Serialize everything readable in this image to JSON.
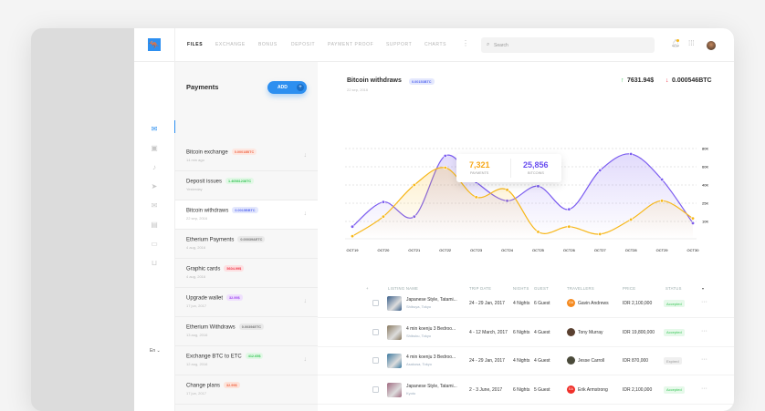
{
  "nav": {
    "items": [
      "FILES",
      "EXCHANGE",
      "BONUS",
      "DEPOSIT",
      "PAYMENT PROOF",
      "SUPPORT",
      "CHARTS"
    ],
    "active": "FILES",
    "search_placeholder": "Search",
    "icons": [
      "logo-kangaroo",
      "more-vertical",
      "search",
      "bell",
      "apps-grid",
      "avatar"
    ]
  },
  "rail": {
    "icons": [
      "mail",
      "calendar",
      "bell",
      "send",
      "inbox",
      "document",
      "chat",
      "tray"
    ],
    "language": "En ⌄"
  },
  "payments": {
    "title": "Payments",
    "add_label": "ADD",
    "items": [
      {
        "title": "Bitcoin exchange",
        "badge": "0.00018BTC",
        "badge_color": "#f06a4a",
        "badge_bg": "#fde8e2",
        "date": "14 min ago",
        "arrow": true
      },
      {
        "title": "Deposit issues",
        "badge": "1.40581238TC",
        "badge_color": "#3cc65a",
        "badge_bg": "#e2f8e6",
        "date": "Yesterday",
        "arrow": false
      },
      {
        "title": "Bitcoin withdraws",
        "badge": "0.0015BBTC",
        "badge_color": "#5a6cf0",
        "badge_bg": "#e4e8fd",
        "date": "22 sep, 2016",
        "arrow": true,
        "selected": true
      },
      {
        "title": "Etherium Payments",
        "badge": "0.00039&ETC",
        "badge_color": "#777",
        "badge_bg": "#e9e9e9",
        "date": "4 aug, 2016",
        "arrow": false
      },
      {
        "title": "Graphic cards",
        "badge": "5604.99$",
        "badge_color": "#f0384a",
        "badge_bg": "#fde0e2",
        "date": "4 aug, 2016",
        "arrow": false
      },
      {
        "title": "Upgrade wallet",
        "badge": "32.99$",
        "badge_color": "#a04af0",
        "badge_bg": "#efe0fd",
        "date": "17 jun, 2017",
        "arrow": true
      },
      {
        "title": "Etherium Withdraws",
        "badge": "0.00394ETC",
        "badge_color": "#777",
        "badge_bg": "#e9e9e9",
        "date": "13 aug, 2016",
        "arrow": false
      },
      {
        "title": "Exchange BTC to ETC",
        "badge": "412.65$",
        "badge_color": "#3cc65a",
        "badge_bg": "#e2f8e6",
        "date": "12 aug, 2016",
        "arrow": true
      },
      {
        "title": "Change plans",
        "badge": "32.99$",
        "badge_color": "#f06a4a",
        "badge_bg": "#fde3da",
        "date": "17 jun, 2017",
        "arrow": false
      }
    ]
  },
  "header": {
    "title": "Bitcoin withdraws",
    "badge": "0.00153BTC",
    "date": "22 sep, 2016",
    "up_value": "7631.94$",
    "down_value": "0.000546BTC",
    "up_color": "#3cc65a",
    "down_color": "#f0384a"
  },
  "tooltip": {
    "payments_value": "7,321",
    "payments_label": "PAYMENTS",
    "bitcoins_value": "25,856",
    "bitcoins_label": "BITCOINS"
  },
  "chart_data": {
    "type": "area",
    "x": [
      "OCT19",
      "OCT20",
      "OCT21",
      "OCT22",
      "OCT23",
      "OCT24",
      "OCT25",
      "OCT26",
      "OCT27",
      "OCT28",
      "OCT29",
      "OCT30"
    ],
    "y_ticks": [
      "10K",
      "25K",
      "40K",
      "60K",
      "80K"
    ],
    "y_tick_values": [
      10,
      25,
      40,
      60,
      80
    ],
    "grid": true,
    "series": [
      {
        "color": "#7b5cf0",
        "values": [
          7,
          26,
          14,
          72,
          43,
          27,
          39,
          20,
          56,
          74,
          46,
          9
        ]
      },
      {
        "color": "#f7b718",
        "values": [
          1.5,
          14,
          40,
          59,
          30,
          36,
          4,
          7,
          2.7,
          11.6,
          27,
          12.5
        ]
      }
    ]
  },
  "table": {
    "headers": [
      "+",
      "LISTING NAME",
      "TRIP DATE",
      "NIGHTS",
      "GUEST",
      "TRAVELLERS",
      "PRICE",
      "STATUS",
      "▾"
    ],
    "rows": [
      {
        "name": "Japanese Style, Tatami...",
        "location": "Shibuya, Tokyo",
        "date": "24 - 29 Jan, 2017",
        "nights": "4 Nights",
        "guest": "6 Guest",
        "traveller": "Gavin Andrews",
        "initials": "GA",
        "avatar_color": "#f58a1f",
        "price": "IDR 2,100,000",
        "status": "Accepted",
        "thumb": "#3a5f8a"
      },
      {
        "name": "4 min koenju 3 Bedroo...",
        "location": "Shibuku, Tokyo",
        "date": "4 - 12 March, 2017",
        "nights": "6 Nights",
        "guest": "4 Guest",
        "traveller": "Tony Murray",
        "initials": "",
        "avatar_color": "#5a4030",
        "price": "IDR 19,800,000",
        "status": "Accepted",
        "thumb": "#8a7a60"
      },
      {
        "name": "4 min koenju 3 Bedroo...",
        "location": "Asakusa, Tokyo",
        "date": "24 - 29 Jan, 2017",
        "nights": "4 Nights",
        "guest": "4 Guest",
        "traveller": "Jesse Carroll",
        "initials": "",
        "avatar_color": "#4a4a3a",
        "price": "IDR 870,000",
        "status": "Expired",
        "thumb": "#3d7aa0"
      },
      {
        "name": "Japanese Style, Tatami...",
        "location": "Kyoto",
        "date": "2 - 3 June, 2017",
        "nights": "6 Nights",
        "guest": "5 Guest",
        "traveller": "Erik Armstrong",
        "initials": "EA",
        "avatar_color": "#f0302a",
        "price": "IDR 2,100,000",
        "status": "Accepted",
        "thumb": "#a06a80"
      }
    ]
  }
}
